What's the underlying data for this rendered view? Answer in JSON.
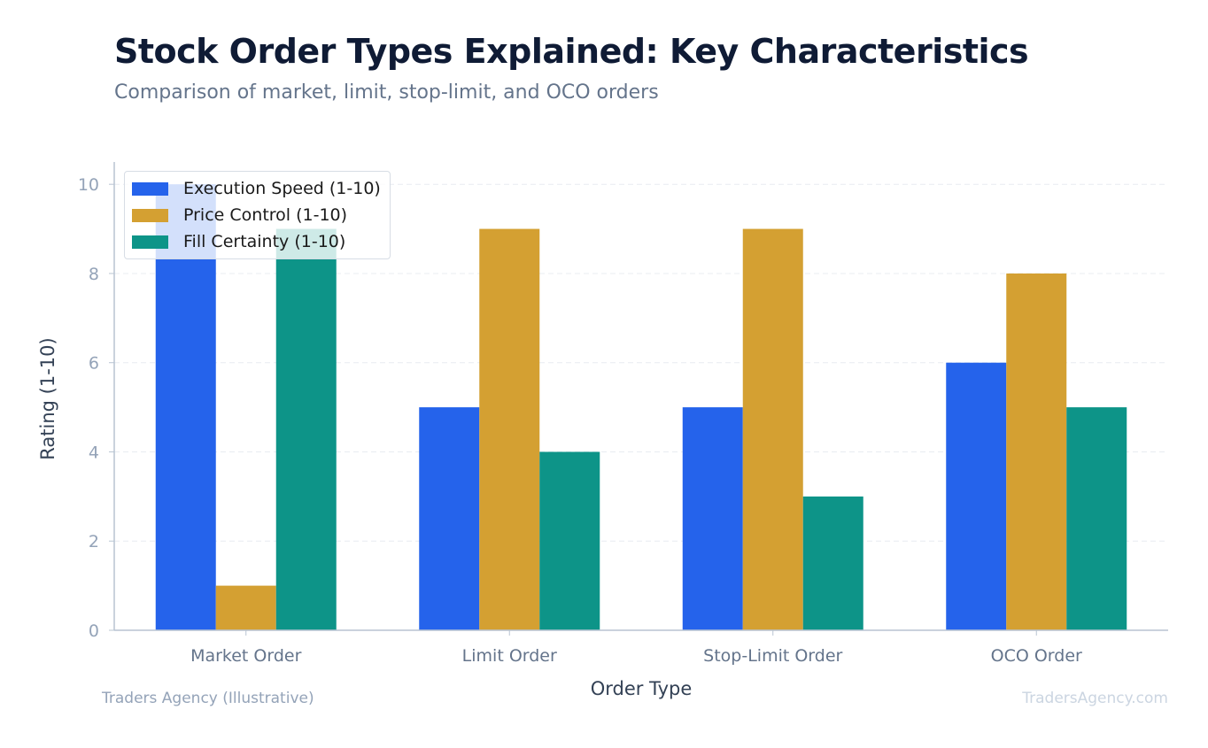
{
  "header": {
    "title": "Stock Order Types Explained: Key Characteristics",
    "subtitle": "Comparison of market, limit, stop-limit, and OCO orders"
  },
  "footer": {
    "source": "Traders Agency (Illustrative)",
    "watermark": "TradersAgency.com"
  },
  "chart_data": {
    "type": "bar",
    "title": "Stock Order Types Explained: Key Characteristics",
    "subtitle": "Comparison of market, limit, stop-limit, and OCO orders",
    "xlabel": "Order Type",
    "ylabel": "Rating (1-10)",
    "categories": [
      "Market Order",
      "Limit Order",
      "Stop-Limit Order",
      "OCO Order"
    ],
    "series": [
      {
        "name": "Execution Speed (1-10)",
        "values": [
          10,
          5,
          5,
          6
        ],
        "color": "#2563eb"
      },
      {
        "name": "Price Control (1-10)",
        "values": [
          1,
          9,
          9,
          8
        ],
        "color": "#d4a032"
      },
      {
        "name": "Fill Certainty (1-10)",
        "values": [
          9,
          4,
          3,
          5
        ],
        "color": "#0d9488"
      }
    ],
    "ylim": [
      0,
      10.5
    ],
    "yticks": [
      0,
      2,
      4,
      6,
      8,
      10
    ],
    "grid": true,
    "legend": "top-left"
  }
}
